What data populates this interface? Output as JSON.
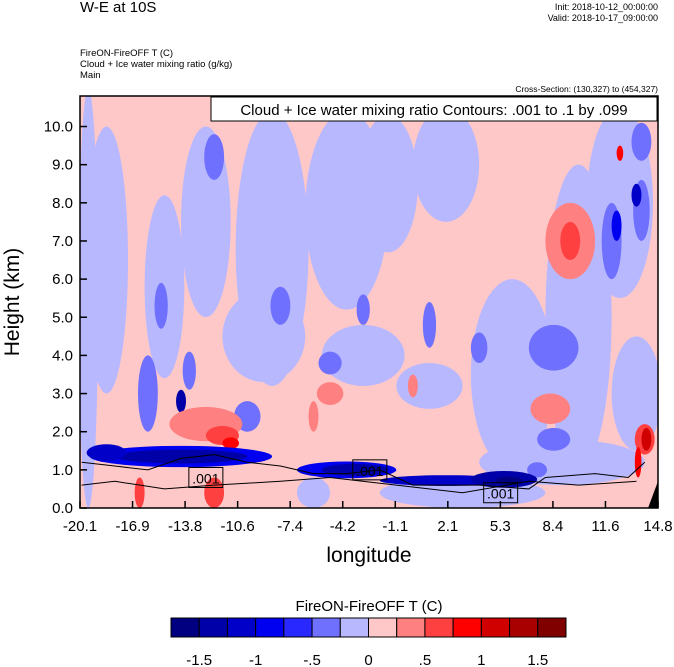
{
  "header": {
    "title": "W-E at 10S",
    "init": "Init: 2018-10-12_00:00:00",
    "valid": "Valid: 2018-10-17_09:00:00",
    "subtitle_lines": [
      "FireON-FireOFF T   (C)",
      "Cloud + Ice water mixing ratio   (g/kg)",
      "Main"
    ],
    "cross_section": "Cross-Section: (130,327) to (454,327)"
  },
  "chart_data": {
    "type": "heatmap",
    "title": "Cloud + Ice water mixing ratio Contours: .001 to .1 by .099",
    "xlabel": "longitude",
    "ylabel": "Height (km)",
    "xlim": [
      -20.1,
      14.8
    ],
    "ylim": [
      0,
      10.8
    ],
    "xticks": [
      "-20.1",
      "-16.9",
      "-13.8",
      "-10.6",
      "-7.4",
      "-4.2",
      "-1.1",
      "2.1",
      "5.3",
      "8.4",
      "11.6",
      "14.8"
    ],
    "yticks": [
      "0.0",
      "1.0",
      "2.0",
      "3.0",
      "4.0",
      "5.0",
      "6.0",
      "7.0",
      "8.0",
      "9.0",
      "10.0"
    ],
    "contour_labels": [
      {
        "text": ".001",
        "lon": -12.5,
        "h": 0.8
      },
      {
        "text": ".001",
        "lon": -2.6,
        "h": 1.0
      },
      {
        "text": ".001",
        "lon": 5.3,
        "h": 0.4
      }
    ],
    "colorbar": {
      "title": "FireON-FireOFF T  (C)",
      "levels": [
        -1.5,
        -1.25,
        -1,
        -0.75,
        -0.5,
        -0.25,
        0,
        0.25,
        0.5,
        0.75,
        1,
        1.25,
        1.5
      ],
      "labels": [
        "-1.5",
        "-1",
        "-.5",
        "0",
        ".5",
        "1",
        "1.5"
      ],
      "colors": [
        "#000080",
        "#0000a8",
        "#0000c8",
        "#0000f0",
        "#2828ff",
        "#7070ff",
        "#b8b8ff",
        "#ffc8c8",
        "#ff8080",
        "#ff4040",
        "#ff0000",
        "#d00000",
        "#a80000",
        "#800000"
      ]
    },
    "background_level": 7,
    "field_patches": [
      [
        -19.6,
        5.5,
        0.6,
        5.5,
        6
      ],
      [
        -18.5,
        6.5,
        1.3,
        3.5,
        6
      ],
      [
        -15,
        5.8,
        1.2,
        2.4,
        6
      ],
      [
        -12.5,
        7.5,
        1.5,
        2.5,
        6
      ],
      [
        -8.5,
        6.8,
        2.2,
        3.6,
        6
      ],
      [
        -4,
        7.8,
        2.5,
        2.6,
        6
      ],
      [
        -1.5,
        8.5,
        1.8,
        1.8,
        6
      ],
      [
        2,
        9,
        2,
        1.5,
        6
      ],
      [
        -9,
        4.5,
        2.5,
        1.2,
        6
      ],
      [
        -3,
        4,
        2.5,
        0.8,
        6
      ],
      [
        1,
        3.2,
        2,
        0.6,
        6
      ],
      [
        6,
        3.5,
        2.5,
        2.5,
        6
      ],
      [
        10,
        5,
        2,
        4,
        6
      ],
      [
        12.5,
        8,
        2,
        2.5,
        6
      ],
      [
        13.5,
        3,
        1.5,
        1.5,
        6
      ],
      [
        9,
        1.2,
        5,
        0.6,
        6
      ],
      [
        3,
        0.4,
        5,
        0.4,
        6
      ],
      [
        -6,
        0.4,
        1,
        0.4,
        6
      ],
      [
        -16,
        3,
        0.6,
        1,
        5
      ],
      [
        -14,
        2.8,
        0.3,
        0.3,
        1
      ],
      [
        -15.2,
        5.3,
        0.4,
        0.6,
        5
      ],
      [
        -10,
        2.4,
        0.8,
        0.4,
        5
      ],
      [
        -8,
        5.3,
        0.6,
        0.5,
        5
      ],
      [
        -5,
        3.8,
        0.7,
        0.3,
        5
      ],
      [
        -3,
        5.2,
        0.4,
        0.4,
        5
      ],
      [
        1,
        4.8,
        0.4,
        0.6,
        5
      ],
      [
        4,
        4.2,
        0.5,
        0.4,
        5
      ],
      [
        8.5,
        4.2,
        1.5,
        0.6,
        5
      ],
      [
        12,
        7,
        0.6,
        1,
        5
      ],
      [
        12.3,
        7.4,
        0.3,
        0.4,
        3
      ],
      [
        13.8,
        7.8,
        0.5,
        0.8,
        5
      ],
      [
        13.5,
        8.2,
        0.3,
        0.3,
        2
      ],
      [
        13.8,
        9.6,
        0.6,
        0.5,
        5
      ],
      [
        -13.5,
        3.6,
        0.4,
        0.5,
        5
      ],
      [
        -12,
        9.2,
        0.6,
        0.6,
        5
      ],
      [
        8.5,
        1.8,
        1,
        0.3,
        5
      ],
      [
        7.5,
        1,
        0.6,
        0.2,
        5
      ],
      [
        -12.5,
        2.2,
        2.2,
        0.45,
        8
      ],
      [
        -11.5,
        1.9,
        1,
        0.25,
        9
      ],
      [
        -11,
        1.7,
        0.5,
        0.15,
        10
      ],
      [
        -12,
        0.4,
        0.6,
        0.4,
        9
      ],
      [
        -16.5,
        0.4,
        0.3,
        0.4,
        9
      ],
      [
        -5,
        3,
        0.8,
        0.3,
        8
      ],
      [
        -6,
        2.4,
        0.3,
        0.4,
        8
      ],
      [
        0,
        3.2,
        0.3,
        0.3,
        8
      ],
      [
        9.5,
        7,
        1.5,
        1,
        8
      ],
      [
        9.5,
        7,
        0.6,
        0.5,
        9
      ],
      [
        8.3,
        2.6,
        1.2,
        0.4,
        8
      ],
      [
        14,
        1.8,
        0.6,
        0.4,
        9
      ],
      [
        14.1,
        1.8,
        0.3,
        0.3,
        11
      ],
      [
        13.6,
        1.2,
        0.2,
        0.4,
        10
      ],
      [
        12.5,
        9.3,
        0.2,
        0.2,
        10
      ],
      [
        -14,
        1.35,
        5.5,
        0.28,
        3
      ],
      [
        -14,
        1.35,
        4,
        0.18,
        1
      ],
      [
        -18.5,
        1.45,
        1.2,
        0.22,
        2
      ],
      [
        -4,
        1.0,
        3,
        0.22,
        3
      ],
      [
        -3.5,
        1.0,
        2,
        0.16,
        1
      ],
      [
        2,
        0.72,
        4,
        0.14,
        2
      ],
      [
        5.5,
        0.75,
        2,
        0.22,
        1
      ],
      [
        5.8,
        0.72,
        0.8,
        0.1,
        0
      ]
    ],
    "contour_lines": [
      [
        [
          -20,
          1.2
        ],
        [
          -18,
          1.1
        ],
        [
          -16,
          1.0
        ],
        [
          -14,
          1.3
        ],
        [
          -12,
          1.4
        ],
        [
          -10,
          1.2
        ],
        [
          -8,
          1.1
        ],
        [
          -6,
          0.9
        ],
        [
          -4,
          0.9
        ],
        [
          -2,
          1.0
        ],
        [
          0,
          0.6
        ],
        [
          4,
          0.6
        ],
        [
          7,
          0.5
        ],
        [
          8,
          0.8
        ],
        [
          11,
          0.9
        ],
        [
          13,
          0.8
        ],
        [
          14,
          1.2
        ]
      ],
      [
        [
          -20,
          0.6
        ],
        [
          -18,
          0.7
        ],
        [
          -15,
          0.5
        ],
        [
          -12,
          0.6
        ],
        [
          -8,
          0.7
        ],
        [
          -5,
          0.8
        ],
        [
          -1,
          0.6
        ],
        [
          3,
          0.4
        ],
        [
          7,
          0.7
        ],
        [
          10,
          0.6
        ],
        [
          13.5,
          0.7
        ]
      ]
    ]
  }
}
